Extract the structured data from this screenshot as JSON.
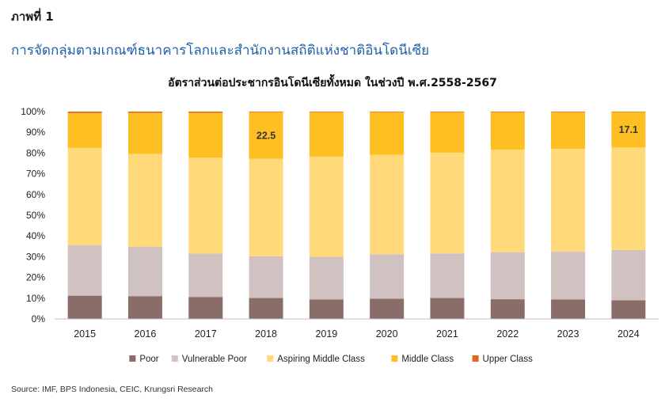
{
  "header": {
    "figure_label": "ภาพที่ 1",
    "figure_title": "การจัดกลุ่มตามเกณฑ์ธนาคารโลกและสำนักงานสถิติแห่งชาติอินโดนีเซีย"
  },
  "source": "Source: IMF, BPS Indonesia, CEIC, Krungsri Research",
  "chart_data": {
    "type": "bar",
    "stacked": true,
    "title": "อัตราส่วนต่อประชากรอินโดนีเซียทั้งหมด ในช่วงปี พ.ศ.2558-2567",
    "categories": [
      "2015",
      "2016",
      "2017",
      "2018",
      "2019",
      "2020",
      "2021",
      "2022",
      "2023",
      "2024"
    ],
    "ylim": [
      0,
      100
    ],
    "yticks": [
      0,
      10,
      20,
      30,
      40,
      50,
      60,
      70,
      80,
      90,
      100
    ],
    "ytick_labels": [
      "0%",
      "10%",
      "20%",
      "30%",
      "40%",
      "50%",
      "60%",
      "70%",
      "80%",
      "90%",
      "100%"
    ],
    "grid": false,
    "legend_position": "bottom",
    "series": [
      {
        "name": "Poor",
        "color": "#8a6d68",
        "values": [
          11.2,
          11.0,
          10.6,
          10.1,
          9.4,
          9.8,
          10.1,
          9.5,
          9.4,
          9.0
        ]
      },
      {
        "name": "Vulnerable Poor",
        "color": "#cfc2c0",
        "values": [
          24.4,
          23.9,
          20.9,
          20.1,
          20.6,
          21.4,
          21.5,
          22.7,
          23.1,
          24.2
        ]
      },
      {
        "name": "Aspiring Middle Class",
        "color": "#ffd97a",
        "values": [
          46.9,
          44.7,
          46.3,
          47.0,
          48.3,
          48.0,
          48.6,
          49.4,
          49.6,
          49.5
        ]
      },
      {
        "name": "Middle Class",
        "color": "#fdbf22",
        "values": [
          16.8,
          19.8,
          21.6,
          22.5,
          21.4,
          20.5,
          19.5,
          18.1,
          17.6,
          17.1
        ]
      },
      {
        "name": "Upper Class",
        "color": "#e0661f",
        "values": [
          0.7,
          0.6,
          0.6,
          0.3,
          0.3,
          0.3,
          0.3,
          0.3,
          0.3,
          0.2
        ]
      }
    ],
    "annotations": [
      {
        "category": "2018",
        "series": "Middle Class",
        "text": "22.5"
      },
      {
        "category": "2024",
        "series": "Middle Class",
        "text": "17.1"
      }
    ]
  }
}
